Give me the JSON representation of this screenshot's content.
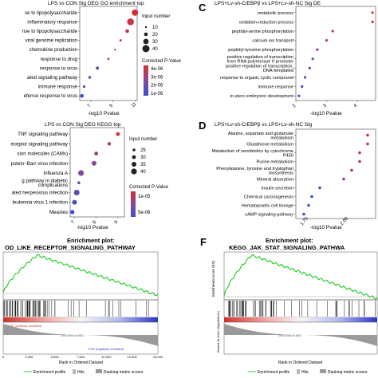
{
  "panels": {
    "C": "C",
    "D": "D",
    "F": "F"
  },
  "go_top": {
    "title": "LPS vs CON Sig DEG GO enrichment top",
    "terms": [
      "se to lipopolysaccharide",
      "inflammatory response",
      "nse to lipopolysaccharide",
      "viral genome replication",
      "chemokine production",
      "response to drug",
      "response to virus",
      "ated signaling pathway",
      "immune response",
      "efense response to virus"
    ],
    "xlabel": "-log10 Pvalue",
    "xticks": [
      "7",
      "9",
      "11"
    ],
    "legend_size_title": "Input number",
    "legend_sizes": [
      "10",
      "20",
      "30",
      "40"
    ],
    "legend_color_title": "Corrected P-Value",
    "legend_colors": [
      "4e-06",
      "3e-06",
      "2e-06",
      "1e-06"
    ]
  },
  "cebp_go": {
    "title": "LPS+Lv-sh-C/EBPβ vs LPS+Lv-sh-NC Sig DE",
    "terms": [
      "metabolic process",
      "oxidation-reduction process",
      "peptidyl-serine phosphorylation",
      "calcium ion transport",
      "peptidyl-tyrosine phosphorylation",
      "positive regulation of transcription from RNA polymerase II promoter",
      "positive regulation of transcription, DNA-templated",
      "response to organic cyclic compound",
      "immune response",
      "in utero embryonic development"
    ],
    "xlabel": "-log10 Pvalue",
    "xticks": [
      "2",
      "3",
      "4"
    ]
  },
  "kegg_top": {
    "title": "LPS vs CON Sig DEG KEGG top",
    "terms": [
      "TNF signaling pathway",
      "eceptor signaling pathway",
      "sion molecules (CAMs)",
      "pstein−Barr virus infection",
      "Influenza A",
      "g pathway in diabetic complications",
      "ated herpesvirus infection",
      "leukemia virus 1 infection",
      "Measles"
    ],
    "xlabel": "-log10 Pvalue",
    "xticks": [
      "7",
      "8",
      "9"
    ],
    "legend_size_title": "Input number",
    "legend_sizes": [
      "25",
      "30",
      "35",
      "40"
    ],
    "legend_color_title": "Corrected P-Value",
    "legend_colors": [
      "1e-05",
      "5e-06"
    ]
  },
  "cebp_kegg": {
    "title": "LPS+Lv-sh-C/EBPβ vs LPS+Lv-sh-NC Sig",
    "terms": [
      "Alanine, aspartate and glutamate metabolism",
      "Glutathione metabolism",
      "Metabolism of xenobiotics by cytochrome P450",
      "Purine metabolism",
      "Phenylalanine, tyrosine and tryptophan biosynthesis",
      "Mineral absorption",
      "Insulin secretion",
      "Chemical carcinogenesis",
      "Hematopoietic cell lineage",
      "cAMP signaling pathway"
    ],
    "xlabel": "-log10 Pvalue",
    "xticks": [
      "1.75",
      "2.00"
    ]
  },
  "gsea_left": {
    "header": "Enrichment plot:",
    "pathway": "OD_LIKE_RECEPTOR_SIGNALING_PATHWAY",
    "xlabel": "Rank in Ordered Dataset",
    "pos_label": "'LPS' (positively correlated)",
    "neg_label": "'CON' (negatively correlated)",
    "zero_cross": "Zero cross at 4661",
    "legend": [
      "Enrichment profile",
      "Hits",
      "Ranking metric scores"
    ],
    "xticks": [
      "0",
      "2,500",
      "5,000",
      "7,500",
      "10,000",
      "12,500",
      "15,000"
    ]
  },
  "gsea_right": {
    "header": "Enrichment plot:",
    "pathway": "KEGG_JAK_STAT_SIGNALING_PATHWA",
    "ylabel_top": "Enrichment score (ES)",
    "ylabel_bottom": "Ranked list metric (Signal2Noise)",
    "xlabel": "Rank in Ordered Dataset",
    "zero_cross": "Zero cross at 4661",
    "legend": [
      "Enrichment profile",
      "Hits",
      "Ranking metric scores"
    ]
  },
  "chart_data": [
    {
      "type": "scatter",
      "title": "LPS vs CON Sig DEG GO enrichment top",
      "xlabel": "-log10 Pvalue",
      "categories": [
        "se to lipopolysaccharide",
        "inflammatory response",
        "nse to lipopolysaccharide",
        "viral genome replication",
        "chemokine production",
        "response to drug",
        "response to virus",
        "ated signaling pathway",
        "immune response",
        "efense response to virus"
      ],
      "x": [
        11.0,
        10.6,
        10.3,
        9.7,
        9.2,
        8.6,
        7.6,
        6.9,
        6.4,
        6.2
      ],
      "size": [
        35,
        38,
        20,
        12,
        10,
        12,
        18,
        15,
        14,
        20
      ],
      "color": [
        4e-06,
        3.8e-06,
        3.5e-06,
        3.2e-06,
        3e-06,
        2.8e-06,
        2e-06,
        1.5e-06,
        1.2e-06,
        1e-06
      ],
      "xlim": [
        6,
        11.2
      ]
    },
    {
      "type": "scatter",
      "title": "LPS+Lv-sh-C/EBPβ vs LPS+Lv-sh-NC Sig DE",
      "xlabel": "-log10 Pvalue",
      "categories": [
        "metabolic process",
        "oxidation-reduction process",
        "peptidyl-serine phosphorylation",
        "calcium ion transport",
        "peptidyl-tyrosine phosphorylation",
        "positive regulation of transcription from RNA polymerase II promoter",
        "positive regulation of transcription, DNA-templated",
        "response to organic cyclic compound",
        "immune response",
        "in utero embryonic development"
      ],
      "x": [
        4.5,
        4.5,
        3.2,
        3.0,
        2.7,
        2.55,
        2.45,
        2.3,
        2.2,
        2.1
      ],
      "xlim": [
        2,
        4.6
      ]
    },
    {
      "type": "scatter",
      "title": "LPS vs CON Sig DEG KEGG top",
      "xlabel": "-log10 Pvalue",
      "categories": [
        "TNF signaling pathway",
        "eceptor signaling pathway",
        "sion molecules (CAMs)",
        "pstein−Barr virus infection",
        "Influenza A",
        "g pathway in diabetic complications",
        "ated herpesvirus infection",
        "leukemia virus 1 infection",
        "Measles"
      ],
      "x": [
        9.0,
        8.6,
        8.0,
        7.9,
        7.3,
        7.2,
        7.1,
        7.0,
        6.9
      ],
      "size": [
        30,
        28,
        30,
        35,
        40,
        25,
        40,
        35,
        32
      ],
      "color": [
        1.2e-05,
        1e-05,
        9e-06,
        8e-06,
        7e-06,
        6e-06,
        5e-06,
        4e-06,
        3e-06
      ],
      "xlim": [
        6.8,
        9.3
      ]
    },
    {
      "type": "scatter",
      "title": "LPS+Lv-sh-C/EBPβ vs LPS+Lv-sh-NC Sig",
      "xlabel": "-log10 Pvalue",
      "categories": [
        "Alanine, aspartate and glutamate metabolism",
        "Glutathione metabolism",
        "Metabolism of xenobiotics by cytochrome P450",
        "Purine metabolism",
        "Phenylalanine, tyrosine and tryptophan biosynthesis",
        "Mineral absorption",
        "Insulin secretion",
        "Chemical carcinogenesis",
        "Hematopoietic cell lineage",
        "cAMP signaling pathway"
      ],
      "x": [
        2.15,
        2.15,
        2.1,
        2.1,
        2.05,
        2.0,
        1.85,
        1.8,
        1.78,
        1.75
      ],
      "xlim": [
        1.7,
        2.2
      ]
    }
  ],
  "colors": {
    "red": "#d32f2f",
    "darkred": "#8b1a2a",
    "purple": "#6a3d9a",
    "blue": "#3a4ed0",
    "green": "#2bd12b"
  }
}
